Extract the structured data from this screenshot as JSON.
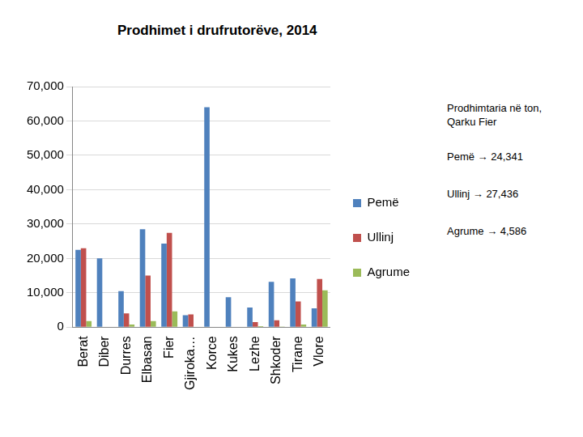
{
  "chart_data": {
    "type": "bar",
    "title": "Prodhimet i drufrutorëve, 2014",
    "categories": [
      "Berat",
      "Diber",
      "Durres",
      "Elbasan",
      "Fier",
      "Gjiroka…",
      "Korce",
      "Kukes",
      "Lezhe",
      "Shkoder",
      "Tirane",
      "Vlore"
    ],
    "series": [
      {
        "name": "Pemë",
        "color": "#4f81bd",
        "values": [
          22500,
          20000,
          10500,
          28500,
          24341,
          3500,
          64000,
          8700,
          5700,
          13200,
          14200,
          5500
        ]
      },
      {
        "name": "Ullinj",
        "color": "#c0504d",
        "values": [
          23000,
          0,
          4000,
          15000,
          27436,
          3700,
          0,
          0,
          1500,
          2000,
          7500,
          14000
        ]
      },
      {
        "name": "Agrume",
        "color": "#9bbb59",
        "values": [
          1800,
          0,
          800,
          1800,
          4586,
          0,
          0,
          0,
          300,
          200,
          800,
          10700
        ]
      }
    ],
    "ylim": [
      0,
      70000
    ],
    "yticks": [
      0,
      {
        "value": 10000,
        "label": "10,000"
      },
      {
        "value": 20000,
        "label": "20,000"
      },
      {
        "value": 30000,
        "label": "30,000"
      },
      {
        "value": 40000,
        "label": "40,000"
      },
      {
        "value": 50000,
        "label": "50,000"
      },
      {
        "value": 60000,
        "label": "60,000"
      },
      {
        "value": 70000,
        "label": "70,000"
      }
    ],
    "grid": true,
    "legend": "right",
    "annotations": [
      "Prodhimtaria në ton, Qarku Fier",
      "Pemë → 24,341",
      "Ullinj → 27,436",
      "Agrume → 4,586"
    ]
  }
}
